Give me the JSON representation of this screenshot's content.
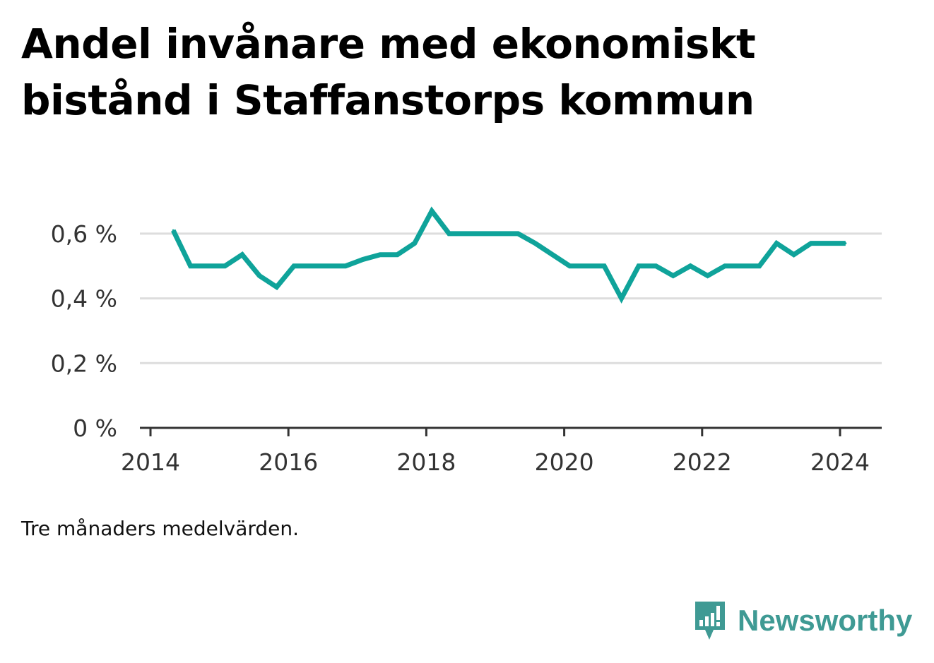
{
  "title": "Andel invånare med ekonomiskt bistånd i Staffanstorps kommun",
  "note": "Tre månaders medelvärden.",
  "brand": {
    "name": "Newsworthy",
    "icon": "newsworthy-logo-icon",
    "color": "#3f9a94"
  },
  "chart_data": {
    "type": "line",
    "title": "Andel invånare med ekonomiskt bistånd i Staffanstorps kommun",
    "xlabel": "",
    "ylabel": "",
    "xlim": [
      2014.0,
      2024.3
    ],
    "ylim": [
      0,
      0.7
    ],
    "yticks": [
      0,
      0.2,
      0.4,
      0.6
    ],
    "ytick_labels": [
      "0 %",
      "0,2 %",
      "0,4 %",
      "0,6 %"
    ],
    "xticks": [
      2014,
      2016,
      2018,
      2020,
      2022,
      2024
    ],
    "xtick_labels": [
      "2014",
      "2016",
      "2018",
      "2020",
      "2022",
      "2024"
    ],
    "grid": true,
    "line_color": "#0fa39a",
    "series": [
      {
        "x": [
          2014.33,
          2014.58,
          2014.83,
          2015.08,
          2015.33,
          2015.58,
          2015.83,
          2016.08,
          2016.33,
          2016.58,
          2016.83,
          2017.08,
          2017.33,
          2017.58,
          2017.83,
          2018.08,
          2018.33,
          2018.58,
          2018.83,
          2019.08,
          2019.33,
          2019.58,
          2019.83,
          2020.08,
          2020.33,
          2020.58,
          2020.83,
          2021.08,
          2021.33,
          2021.58,
          2021.83,
          2022.08,
          2022.33,
          2022.58,
          2022.83,
          2023.08,
          2023.33,
          2023.58,
          2023.83,
          2024.08
        ],
        "values": [
          0.61,
          0.5,
          0.5,
          0.5,
          0.535,
          0.47,
          0.435,
          0.5,
          0.5,
          0.5,
          0.5,
          0.52,
          0.535,
          0.535,
          0.57,
          0.67,
          0.6,
          0.6,
          0.6,
          0.6,
          0.6,
          0.57,
          0.535,
          0.5,
          0.5,
          0.5,
          0.4,
          0.5,
          0.5,
          0.47,
          0.5,
          0.47,
          0.5,
          0.5,
          0.5,
          0.57,
          0.535,
          0.57,
          0.57,
          0.57
        ]
      }
    ]
  }
}
